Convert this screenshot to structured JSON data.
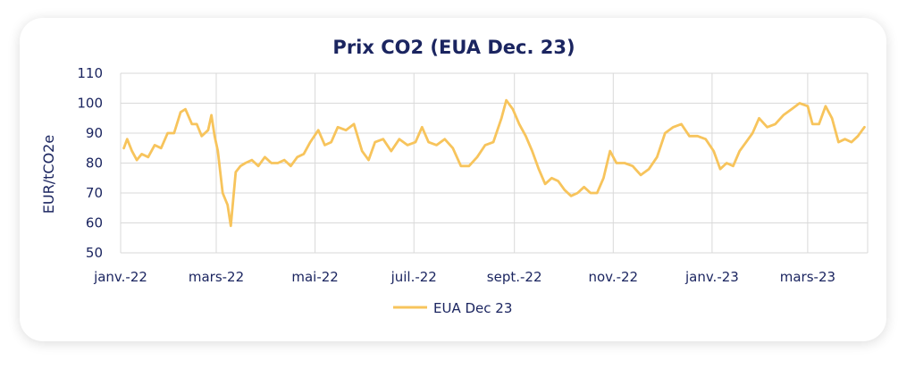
{
  "chart_data": {
    "type": "line",
    "title": "Prix CO2 (EUA Dec. 23)",
    "xlabel": "",
    "ylabel": "EUR/tCO2e",
    "ylim": [
      50,
      110
    ],
    "yticks": [
      50,
      60,
      70,
      80,
      90,
      100,
      110
    ],
    "xlim": [
      "2022-01-01",
      "2023-04-07"
    ],
    "xticks": [
      {
        "date": "2022-01-01",
        "label": "janv.-22"
      },
      {
        "date": "2022-03-01",
        "label": "mars-22"
      },
      {
        "date": "2022-05-01",
        "label": "mai-22"
      },
      {
        "date": "2022-07-01",
        "label": "juil.-22"
      },
      {
        "date": "2022-09-01",
        "label": "sept.-22"
      },
      {
        "date": "2022-11-01",
        "label": "nov.-22"
      },
      {
        "date": "2023-01-01",
        "label": "janv.-23"
      },
      {
        "date": "2023-03-01",
        "label": "mars-23"
      }
    ],
    "grid": true,
    "legend": "bottom",
    "series": [
      {
        "name": "EUA Dec 23",
        "color": "#f7c45c",
        "x": [
          "2022-01-03",
          "2022-01-05",
          "2022-01-08",
          "2022-01-11",
          "2022-01-14",
          "2022-01-18",
          "2022-01-22",
          "2022-01-26",
          "2022-01-30",
          "2022-02-03",
          "2022-02-07",
          "2022-02-10",
          "2022-02-14",
          "2022-02-17",
          "2022-02-20",
          "2022-02-24",
          "2022-02-26",
          "2022-02-28",
          "2022-03-02",
          "2022-03-05",
          "2022-03-08",
          "2022-03-10",
          "2022-03-13",
          "2022-03-16",
          "2022-03-19",
          "2022-03-23",
          "2022-03-27",
          "2022-03-31",
          "2022-04-04",
          "2022-04-08",
          "2022-04-12",
          "2022-04-16",
          "2022-04-20",
          "2022-04-24",
          "2022-04-28",
          "2022-05-03",
          "2022-05-07",
          "2022-05-11",
          "2022-05-15",
          "2022-05-20",
          "2022-05-25",
          "2022-05-30",
          "2022-06-03",
          "2022-06-07",
          "2022-06-12",
          "2022-06-17",
          "2022-06-22",
          "2022-06-27",
          "2022-07-02",
          "2022-07-06",
          "2022-07-10",
          "2022-07-15",
          "2022-07-20",
          "2022-07-25",
          "2022-07-30",
          "2022-08-04",
          "2022-08-09",
          "2022-08-14",
          "2022-08-19",
          "2022-08-24",
          "2022-08-27",
          "2022-08-31",
          "2022-09-04",
          "2022-09-08",
          "2022-09-12",
          "2022-09-16",
          "2022-09-20",
          "2022-09-24",
          "2022-09-28",
          "2022-10-02",
          "2022-10-06",
          "2022-10-10",
          "2022-10-14",
          "2022-10-18",
          "2022-10-22",
          "2022-10-26",
          "2022-10-30",
          "2022-11-03",
          "2022-11-08",
          "2022-11-13",
          "2022-11-18",
          "2022-11-23",
          "2022-11-28",
          "2022-12-03",
          "2022-12-08",
          "2022-12-13",
          "2022-12-18",
          "2022-12-23",
          "2022-12-28",
          "2023-01-02",
          "2023-01-06",
          "2023-01-10",
          "2023-01-14",
          "2023-01-18",
          "2023-01-22",
          "2023-01-26",
          "2023-01-30",
          "2023-02-04",
          "2023-02-09",
          "2023-02-14",
          "2023-02-19",
          "2023-02-24",
          "2023-03-01",
          "2023-03-04",
          "2023-03-08",
          "2023-03-12",
          "2023-03-16",
          "2023-03-20",
          "2023-03-24",
          "2023-03-28",
          "2023-04-01",
          "2023-04-05"
        ],
        "y": [
          85,
          88,
          84,
          81,
          83,
          82,
          86,
          85,
          90,
          90,
          97,
          98,
          93,
          93,
          89,
          91,
          96,
          89,
          84,
          70,
          66,
          59,
          77,
          79,
          80,
          81,
          79,
          82,
          80,
          80,
          81,
          79,
          82,
          83,
          87,
          91,
          86,
          87,
          92,
          91,
          93,
          84,
          81,
          87,
          88,
          84,
          88,
          86,
          87,
          92,
          87,
          86,
          88,
          85,
          79,
          79,
          82,
          86,
          87,
          95,
          101,
          98,
          93,
          89,
          84,
          78,
          73,
          75,
          74,
          71,
          69,
          70,
          72,
          70,
          70,
          75,
          84,
          80,
          80,
          79,
          76,
          78,
          82,
          90,
          92,
          93,
          89,
          89,
          88,
          84,
          78,
          80,
          79,
          84,
          87,
          90,
          95,
          92,
          93,
          96,
          98,
          100,
          99,
          93,
          93,
          99,
          95,
          87,
          88,
          87,
          89,
          92
        ]
      }
    ]
  }
}
